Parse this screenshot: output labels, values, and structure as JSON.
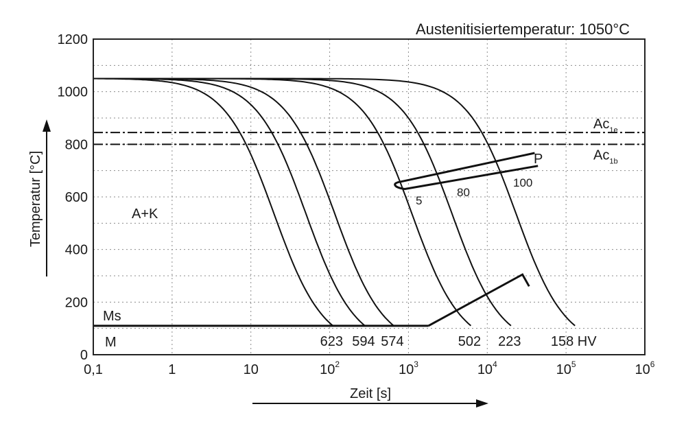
{
  "chart_data": {
    "type": "line",
    "title": "Austenitisiertemperatur: 1050°C",
    "xlabel": "Zeit [s]",
    "ylabel": "Temperatur [°C]",
    "xscale": "log",
    "xlim": [
      0.1,
      1000000
    ],
    "ylim": [
      0,
      1200
    ],
    "grid": true,
    "x_ticks": [
      {
        "base": "0,1",
        "exp": ""
      },
      {
        "base": "1",
        "exp": ""
      },
      {
        "base": "10",
        "exp": ""
      },
      {
        "base": "10",
        "exp": "2"
      },
      {
        "base": "10",
        "exp": "3"
      },
      {
        "base": "10",
        "exp": "4"
      },
      {
        "base": "10",
        "exp": "5"
      },
      {
        "base": "10",
        "exp": "6"
      }
    ],
    "y_ticks": [
      "0",
      "200",
      "400",
      "600",
      "800",
      "1000",
      "1200"
    ],
    "hlines": [
      {
        "main": "Ac",
        "sub": "1e",
        "y": 845
      },
      {
        "main": "Ac",
        "sub": "1b",
        "y": 800
      }
    ],
    "cooling_curves": [
      {
        "hardness": "623",
        "t_end": 110
      },
      {
        "hardness": "594",
        "t_end": 280
      },
      {
        "hardness": "574",
        "t_end": 650
      },
      {
        "hardness": "502",
        "t_end": 6200
      },
      {
        "hardness": "223",
        "t_end": 20000
      },
      {
        "hardness": "158 HV",
        "t_end": 130000
      }
    ],
    "ms_line": {
      "y": 110,
      "t_start": 0.1,
      "t_end": 1800
    },
    "martensite_boundary": [
      [
        1800,
        110
      ],
      [
        28000,
        305
      ],
      [
        34000,
        260
      ]
    ],
    "pearlite_region": {
      "upper": [
        [
          800,
          658
        ],
        [
          40000,
          767
        ]
      ],
      "lower": [
        [
          900,
          630
        ],
        [
          44000,
          718
        ]
      ]
    },
    "annotations": {
      "region_ak": "A+K",
      "ms": "Ms",
      "m": "M",
      "p": "P",
      "pct_5": "5",
      "pct_80": "80",
      "pct_100": "100"
    }
  }
}
